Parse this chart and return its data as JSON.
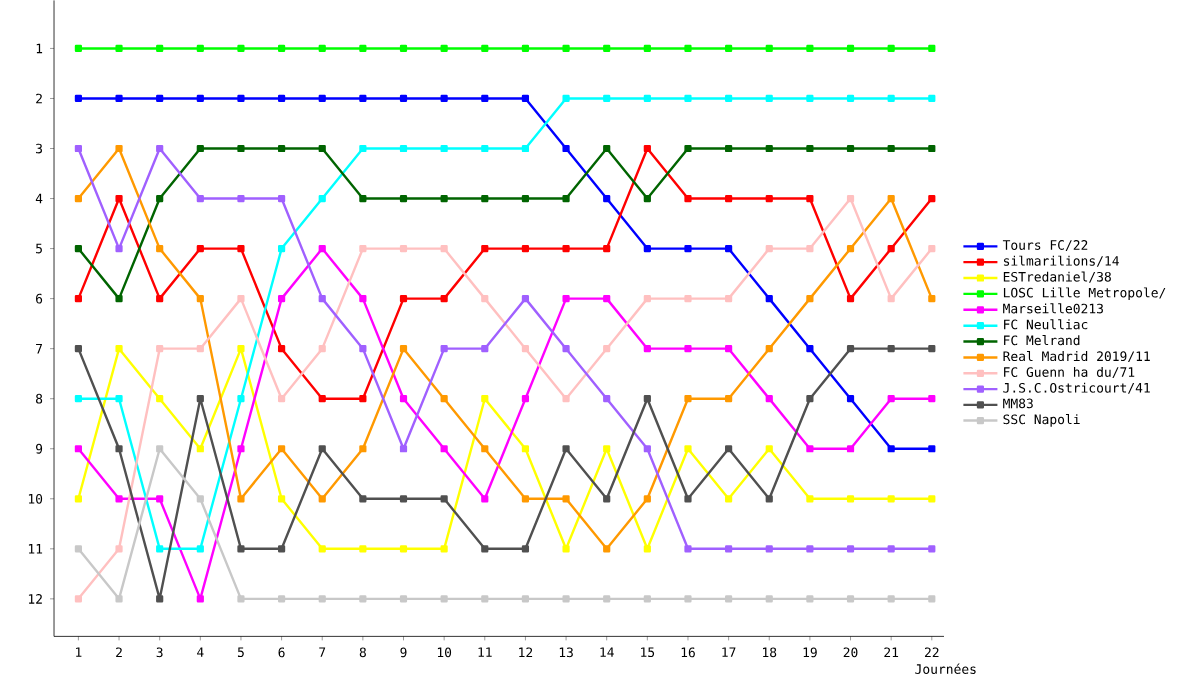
{
  "chart_data": {
    "type": "line",
    "xlabel": "Journées",
    "x": [
      1,
      2,
      3,
      4,
      5,
      6,
      7,
      8,
      9,
      10,
      11,
      12,
      13,
      14,
      15,
      16,
      17,
      18,
      19,
      20,
      21,
      22
    ],
    "series": [
      {
        "name": "Tours FC/22",
        "color": "#0000ff",
        "values": [
          2,
          2,
          2,
          2,
          2,
          2,
          2,
          2,
          2,
          2,
          2,
          2,
          3,
          4,
          5,
          5,
          5,
          6,
          7,
          8,
          9,
          9
        ]
      },
      {
        "name": "silmarilions/14",
        "color": "#ff0000",
        "values": [
          6,
          4,
          6,
          5,
          5,
          7,
          8,
          8,
          6,
          6,
          5,
          5,
          5,
          5,
          3,
          4,
          4,
          4,
          4,
          6,
          5,
          4
        ]
      },
      {
        "name": "ESTredaniel/38",
        "color": "#ffff00",
        "values": [
          10,
          7,
          8,
          9,
          7,
          10,
          11,
          11,
          11,
          11,
          8,
          9,
          11,
          9,
          11,
          9,
          10,
          9,
          10,
          10,
          10,
          10
        ]
      },
      {
        "name": "LOSC Lille Metropole/",
        "color": "#00ff00",
        "values": [
          1,
          1,
          1,
          1,
          1,
          1,
          1,
          1,
          1,
          1,
          1,
          1,
          1,
          1,
          1,
          1,
          1,
          1,
          1,
          1,
          1,
          1
        ]
      },
      {
        "name": "Marseille0213",
        "color": "#ff00ff",
        "values": [
          9,
          10,
          10,
          12,
          9,
          6,
          5,
          6,
          8,
          9,
          10,
          8,
          6,
          6,
          7,
          7,
          7,
          8,
          9,
          9,
          8,
          8
        ]
      },
      {
        "name": "FC Neulliac",
        "color": "#00ffff",
        "values": [
          8,
          8,
          11,
          11,
          8,
          5,
          4,
          3,
          3,
          3,
          3,
          3,
          2,
          2,
          2,
          2,
          2,
          2,
          2,
          2,
          2,
          2
        ]
      },
      {
        "name": "FC Melrand",
        "color": "#006400",
        "values": [
          5,
          6,
          4,
          3,
          3,
          3,
          3,
          4,
          4,
          4,
          4,
          4,
          4,
          3,
          4,
          3,
          3,
          3,
          3,
          3,
          3,
          3
        ]
      },
      {
        "name": "Real Madrid 2019/11",
        "color": "#ff9900",
        "values": [
          4,
          3,
          5,
          6,
          10,
          9,
          10,
          9,
          7,
          8,
          9,
          10,
          10,
          11,
          10,
          8,
          8,
          7,
          6,
          5,
          4,
          6
        ]
      },
      {
        "name": "FC Guenn ha du/71",
        "color": "#ffc0c0",
        "values": [
          12,
          11,
          7,
          7,
          6,
          8,
          7,
          5,
          5,
          5,
          6,
          7,
          8,
          7,
          6,
          6,
          6,
          5,
          5,
          4,
          6,
          5
        ]
      },
      {
        "name": "J.S.C.Ostricourt/41",
        "color": "#a060ff",
        "values": [
          3,
          5,
          3,
          4,
          4,
          4,
          6,
          7,
          9,
          7,
          7,
          6,
          7,
          8,
          9,
          11,
          11,
          11,
          11,
          11,
          11,
          11
        ]
      },
      {
        "name": "MM83",
        "color": "#505050",
        "values": [
          7,
          9,
          12,
          8,
          11,
          11,
          9,
          10,
          10,
          10,
          11,
          11,
          9,
          10,
          8,
          10,
          9,
          10,
          8,
          7,
          7,
          7
        ]
      },
      {
        "name": "SSC Napoli",
        "color": "#c8c8c8",
        "values": [
          11,
          12,
          9,
          10,
          12,
          12,
          12,
          12,
          12,
          12,
          12,
          12,
          12,
          12,
          12,
          12,
          12,
          12,
          12,
          12,
          12,
          12
        ]
      }
    ],
    "xlim": [
      0.4,
      22.3
    ],
    "ylim": [
      12.75,
      0.04
    ],
    "xticks": [
      1,
      2,
      3,
      4,
      5,
      6,
      7,
      8,
      9,
      10,
      11,
      12,
      13,
      14,
      15,
      16,
      17,
      18,
      19,
      20,
      21,
      22
    ],
    "yticks": [
      1,
      2,
      3,
      4,
      5,
      6,
      7,
      8,
      9,
      10,
      11,
      12
    ],
    "grid": false,
    "legend": "right",
    "marker": "square",
    "line_style": "solid"
  }
}
